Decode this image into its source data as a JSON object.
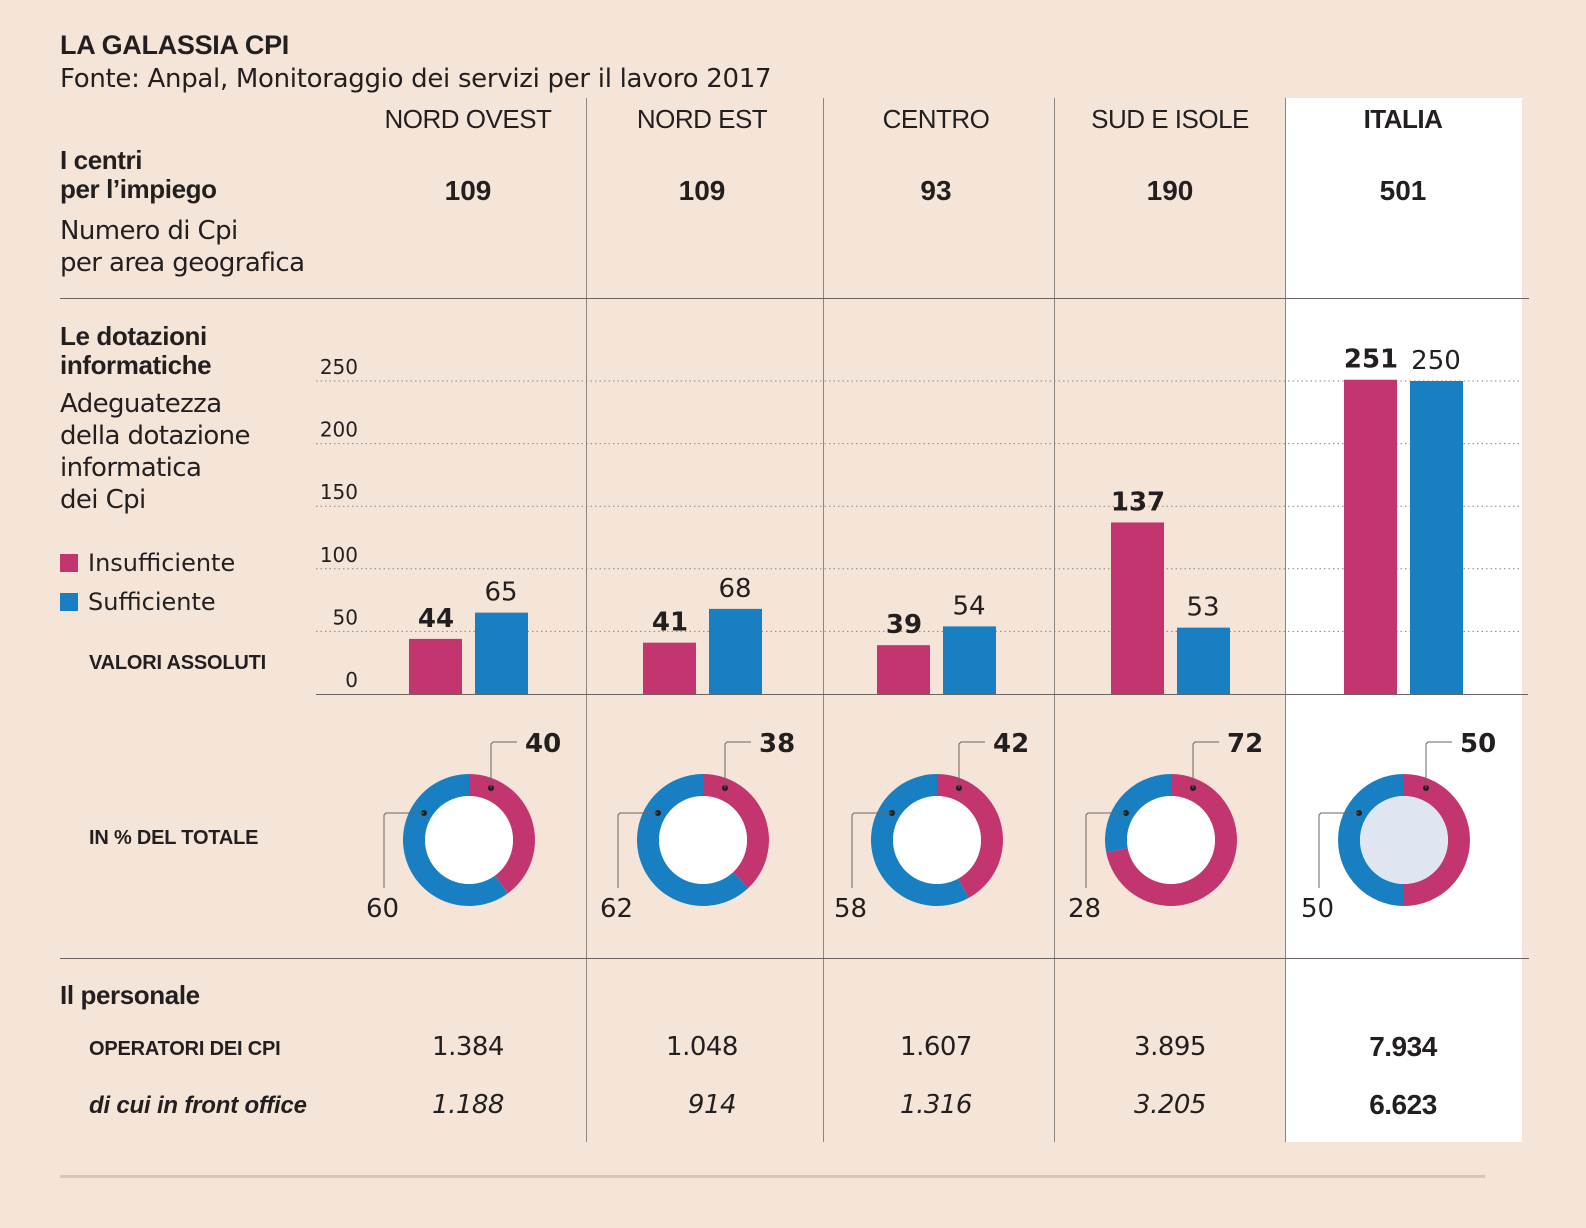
{
  "header": {
    "title": "LA GALASSIA CPI",
    "source": "Fonte: Anpal, Monitoraggio dei servizi per il lavoro 2017"
  },
  "columns": [
    {
      "label": "NORD OVEST"
    },
    {
      "label": "NORD EST"
    },
    {
      "label": "CENTRO"
    },
    {
      "label": "SUD E ISOLE"
    },
    {
      "label": "ITALIA"
    }
  ],
  "section_centri": {
    "title_line1": "I centri",
    "title_line2": "per l’impiego",
    "desc_line1": "Numero di Cpi",
    "desc_line2": "per area geografica",
    "values": [
      "109",
      "109",
      "93",
      "190",
      "501"
    ]
  },
  "section_dotazioni": {
    "title_line1": "Le dotazioni",
    "title_line2": "informatiche",
    "desc_lines": [
      "Adeguatezza",
      "della dotazione",
      "informatica",
      "dei Cpi"
    ],
    "legend": [
      {
        "label": "Insufficiente",
        "color": "#c2356f"
      },
      {
        "label": "Sufficiente",
        "color": "#177fc2"
      }
    ],
    "bars_caption": "VALORI ASSOLUTI",
    "donuts_caption": "IN % DEL TOTALE"
  },
  "section_personale": {
    "title": "Il personale",
    "rows": [
      {
        "label": "OPERATORI DEI CPI",
        "values": [
          "1.384",
          "1.048",
          "1.607",
          "3.895",
          "7.934"
        ]
      },
      {
        "label": "di cui in front office",
        "values": [
          "1.188",
          "914",
          "1.316",
          "3.205",
          "6.623"
        ]
      }
    ]
  },
  "colors": {
    "background": "#f5e5d8",
    "insufficiente": "#c2356f",
    "sufficiente": "#177fc2",
    "italia_panel": "#ffffff",
    "italia_donut_center": "#dfe6f1"
  },
  "chart_data": [
    {
      "type": "bar",
      "title": "Adeguatezza della dotazione informatica dei Cpi — valori assoluti",
      "categories": [
        "NORD OVEST",
        "NORD EST",
        "CENTRO",
        "SUD E ISOLE",
        "ITALIA"
      ],
      "series": [
        {
          "name": "Insufficiente",
          "values": [
            44,
            41,
            39,
            137,
            251
          ],
          "labels": [
            "44",
            "41",
            "39",
            "137",
            "251"
          ]
        },
        {
          "name": "Sufficiente",
          "values": [
            65,
            68,
            54,
            53,
            250
          ],
          "labels": [
            "65",
            "68",
            "54",
            "53",
            "250"
          ]
        }
      ],
      "ylim": [
        0,
        250
      ],
      "yticks": [
        0,
        50,
        100,
        150,
        200,
        250
      ],
      "ytick_labels": [
        "0",
        "50",
        "100",
        "150",
        "200",
        "250"
      ],
      "grid": true,
      "xlabel": "",
      "ylabel": ""
    },
    {
      "type": "pie",
      "title": "In % del totale",
      "categories": [
        "NORD OVEST",
        "NORD EST",
        "CENTRO",
        "SUD E ISOLE",
        "ITALIA"
      ],
      "series": [
        {
          "name": "Insufficiente",
          "values": [
            40,
            38,
            42,
            72,
            50
          ],
          "labels": [
            "40",
            "38",
            "42",
            "72",
            "50"
          ]
        },
        {
          "name": "Sufficiente",
          "values": [
            60,
            62,
            58,
            28,
            50
          ],
          "labels": [
            "60",
            "62",
            "58",
            "28",
            "50"
          ]
        }
      ],
      "donut": true
    }
  ]
}
